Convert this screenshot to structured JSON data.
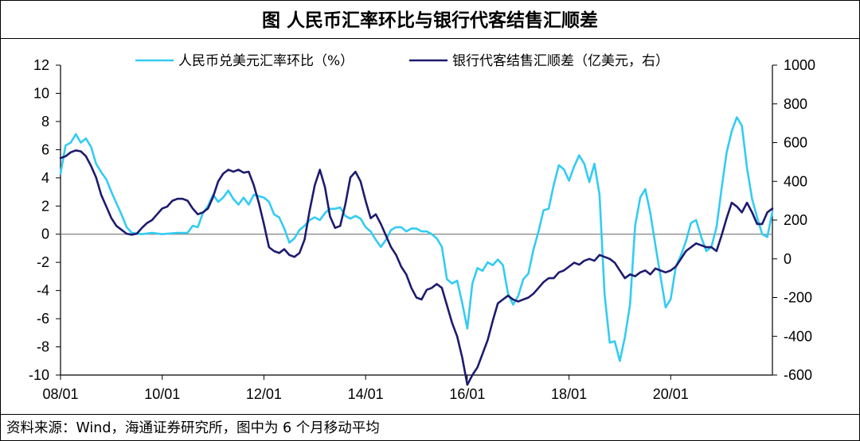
{
  "title": "图  人民币汇率环比与银行代客结售汇顺差",
  "source": "资料来源：Wind，海通证券研究所，图中为 6 个月移动平均",
  "chart_data": {
    "type": "line",
    "title": "图  人民币汇率环比与银行代客结售汇顺差",
    "x_tick_labels": [
      "08/01",
      "10/01",
      "12/01",
      "14/01",
      "16/01",
      "18/01",
      "20/01"
    ],
    "x_tick_years": [
      2008,
      2010,
      2012,
      2014,
      2016,
      2018,
      2020
    ],
    "xlim": [
      2008.0,
      2022.0
    ],
    "y_left": {
      "ylim": [
        -10,
        12
      ],
      "ticks": [
        -10,
        -8,
        -6,
        -4,
        -2,
        0,
        2,
        4,
        6,
        8,
        10,
        12
      ]
    },
    "y_right": {
      "ylim": [
        -600,
        1000
      ],
      "ticks": [
        -600,
        -400,
        -200,
        0,
        200,
        400,
        600,
        800,
        1000
      ]
    },
    "legend_position": "top",
    "series": [
      {
        "name": "人民币兑美元汇率环比（%）",
        "axis": "left",
        "color": "#33ccf2",
        "points": [
          [
            2008.0,
            4.3
          ],
          [
            2008.1,
            6.3
          ],
          [
            2008.2,
            6.5
          ],
          [
            2008.3,
            7.1
          ],
          [
            2008.4,
            6.5
          ],
          [
            2008.5,
            6.8
          ],
          [
            2008.6,
            6.2
          ],
          [
            2008.7,
            5.0
          ],
          [
            2008.8,
            4.4
          ],
          [
            2008.9,
            3.9
          ],
          [
            2009.0,
            3.0
          ],
          [
            2009.1,
            2.2
          ],
          [
            2009.2,
            1.4
          ],
          [
            2009.3,
            0.5
          ],
          [
            2009.4,
            0.1
          ],
          [
            2009.6,
            0.0
          ],
          [
            2009.8,
            0.1
          ],
          [
            2010.0,
            0.0
          ],
          [
            2010.3,
            0.1
          ],
          [
            2010.5,
            0.1
          ],
          [
            2010.6,
            0.6
          ],
          [
            2010.7,
            0.5
          ],
          [
            2010.8,
            1.5
          ],
          [
            2010.9,
            2.0
          ],
          [
            2011.0,
            2.8
          ],
          [
            2011.1,
            2.3
          ],
          [
            2011.2,
            2.6
          ],
          [
            2011.3,
            3.1
          ],
          [
            2011.4,
            2.5
          ],
          [
            2011.5,
            2.1
          ],
          [
            2011.6,
            2.6
          ],
          [
            2011.7,
            2.1
          ],
          [
            2011.8,
            2.8
          ],
          [
            2011.9,
            2.7
          ],
          [
            2012.0,
            2.6
          ],
          [
            2012.1,
            2.3
          ],
          [
            2012.2,
            1.4
          ],
          [
            2012.3,
            1.2
          ],
          [
            2012.4,
            0.4
          ],
          [
            2012.5,
            -0.6
          ],
          [
            2012.6,
            -0.3
          ],
          [
            2012.7,
            0.3
          ],
          [
            2012.8,
            0.6
          ],
          [
            2012.9,
            1.0
          ],
          [
            2013.0,
            1.2
          ],
          [
            2013.1,
            1.0
          ],
          [
            2013.2,
            1.5
          ],
          [
            2013.3,
            1.8
          ],
          [
            2013.4,
            1.8
          ],
          [
            2013.5,
            1.9
          ],
          [
            2013.6,
            1.3
          ],
          [
            2013.7,
            1.1
          ],
          [
            2013.8,
            1.3
          ],
          [
            2013.9,
            1.1
          ],
          [
            2014.0,
            0.5
          ],
          [
            2014.1,
            0.2
          ],
          [
            2014.2,
            -0.4
          ],
          [
            2014.3,
            -0.9
          ],
          [
            2014.4,
            -0.4
          ],
          [
            2014.5,
            0.3
          ],
          [
            2014.6,
            0.5
          ],
          [
            2014.7,
            0.5
          ],
          [
            2014.8,
            0.2
          ],
          [
            2014.9,
            0.4
          ],
          [
            2015.0,
            0.4
          ],
          [
            2015.1,
            0.2
          ],
          [
            2015.2,
            0.2
          ],
          [
            2015.3,
            0.0
          ],
          [
            2015.4,
            -0.3
          ],
          [
            2015.5,
            -0.9
          ],
          [
            2015.6,
            -3.2
          ],
          [
            2015.7,
            -3.5
          ],
          [
            2015.8,
            -3.3
          ],
          [
            2015.9,
            -4.9
          ],
          [
            2016.0,
            -6.7
          ],
          [
            2016.1,
            -3.5
          ],
          [
            2016.2,
            -2.4
          ],
          [
            2016.3,
            -2.6
          ],
          [
            2016.4,
            -2.0
          ],
          [
            2016.5,
            -2.2
          ],
          [
            2016.6,
            -1.8
          ],
          [
            2016.7,
            -2.2
          ],
          [
            2016.8,
            -4.2
          ],
          [
            2016.9,
            -5.0
          ],
          [
            2017.0,
            -4.4
          ],
          [
            2017.1,
            -3.2
          ],
          [
            2017.2,
            -2.8
          ],
          [
            2017.3,
            -1.1
          ],
          [
            2017.4,
            0.2
          ],
          [
            2017.5,
            1.7
          ],
          [
            2017.6,
            1.8
          ],
          [
            2017.7,
            3.5
          ],
          [
            2017.8,
            4.9
          ],
          [
            2017.9,
            4.6
          ],
          [
            2018.0,
            3.8
          ],
          [
            2018.1,
            4.8
          ],
          [
            2018.2,
            5.6
          ],
          [
            2018.3,
            5.0
          ],
          [
            2018.4,
            3.7
          ],
          [
            2018.5,
            5.0
          ],
          [
            2018.6,
            2.8
          ],
          [
            2018.7,
            -4.3
          ],
          [
            2018.8,
            -7.7
          ],
          [
            2018.9,
            -7.6
          ],
          [
            2019.0,
            -9.0
          ],
          [
            2019.1,
            -7.3
          ],
          [
            2019.2,
            -5.0
          ],
          [
            2019.3,
            0.6
          ],
          [
            2019.4,
            2.6
          ],
          [
            2019.5,
            3.2
          ],
          [
            2019.6,
            1.5
          ],
          [
            2019.7,
            -0.8
          ],
          [
            2019.8,
            -3.0
          ],
          [
            2019.9,
            -5.2
          ],
          [
            2020.0,
            -4.6
          ],
          [
            2020.1,
            -2.3
          ],
          [
            2020.2,
            -1.5
          ],
          [
            2020.3,
            -0.5
          ],
          [
            2020.4,
            0.8
          ],
          [
            2020.5,
            1.0
          ],
          [
            2020.6,
            -0.2
          ],
          [
            2020.7,
            -1.2
          ],
          [
            2020.8,
            -0.9
          ],
          [
            2020.9,
            0.5
          ],
          [
            2021.0,
            3.2
          ],
          [
            2021.1,
            5.8
          ],
          [
            2021.2,
            7.3
          ],
          [
            2021.3,
            8.3
          ],
          [
            2021.4,
            7.7
          ],
          [
            2021.5,
            4.7
          ],
          [
            2021.6,
            2.5
          ],
          [
            2021.7,
            1.2
          ],
          [
            2021.8,
            0.0
          ],
          [
            2021.9,
            -0.2
          ],
          [
            2022.0,
            1.6
          ]
        ]
      },
      {
        "name": "银行代客结售汇顺差（亿美元，右）",
        "axis": "right",
        "color": "#1e1b6e",
        "points": [
          [
            2008.0,
            520
          ],
          [
            2008.1,
            530
          ],
          [
            2008.2,
            550
          ],
          [
            2008.3,
            560
          ],
          [
            2008.4,
            555
          ],
          [
            2008.5,
            530
          ],
          [
            2008.6,
            480
          ],
          [
            2008.7,
            420
          ],
          [
            2008.8,
            330
          ],
          [
            2008.9,
            270
          ],
          [
            2009.0,
            210
          ],
          [
            2009.1,
            170
          ],
          [
            2009.2,
            150
          ],
          [
            2009.3,
            130
          ],
          [
            2009.4,
            125
          ],
          [
            2009.5,
            130
          ],
          [
            2009.6,
            160
          ],
          [
            2009.7,
            185
          ],
          [
            2009.8,
            200
          ],
          [
            2009.9,
            230
          ],
          [
            2010.0,
            260
          ],
          [
            2010.1,
            270
          ],
          [
            2010.2,
            300
          ],
          [
            2010.3,
            310
          ],
          [
            2010.4,
            310
          ],
          [
            2010.5,
            300
          ],
          [
            2010.6,
            260
          ],
          [
            2010.7,
            230
          ],
          [
            2010.8,
            240
          ],
          [
            2010.9,
            260
          ],
          [
            2011.0,
            320
          ],
          [
            2011.1,
            400
          ],
          [
            2011.2,
            440
          ],
          [
            2011.3,
            460
          ],
          [
            2011.4,
            450
          ],
          [
            2011.5,
            460
          ],
          [
            2011.6,
            445
          ],
          [
            2011.7,
            450
          ],
          [
            2011.8,
            380
          ],
          [
            2011.9,
            290
          ],
          [
            2012.0,
            180
          ],
          [
            2012.1,
            60
          ],
          [
            2012.2,
            40
          ],
          [
            2012.3,
            30
          ],
          [
            2012.4,
            50
          ],
          [
            2012.5,
            20
          ],
          [
            2012.6,
            10
          ],
          [
            2012.7,
            30
          ],
          [
            2012.8,
            100
          ],
          [
            2012.9,
            250
          ],
          [
            2013.0,
            380
          ],
          [
            2013.1,
            460
          ],
          [
            2013.2,
            370
          ],
          [
            2013.3,
            220
          ],
          [
            2013.4,
            160
          ],
          [
            2013.5,
            170
          ],
          [
            2013.6,
            280
          ],
          [
            2013.7,
            420
          ],
          [
            2013.8,
            450
          ],
          [
            2013.9,
            400
          ],
          [
            2014.0,
            300
          ],
          [
            2014.1,
            210
          ],
          [
            2014.2,
            230
          ],
          [
            2014.3,
            180
          ],
          [
            2014.4,
            120
          ],
          [
            2014.5,
            60
          ],
          [
            2014.6,
            20
          ],
          [
            2014.7,
            -40
          ],
          [
            2014.8,
            -80
          ],
          [
            2014.9,
            -150
          ],
          [
            2015.0,
            -200
          ],
          [
            2015.1,
            -210
          ],
          [
            2015.2,
            -160
          ],
          [
            2015.3,
            -150
          ],
          [
            2015.4,
            -130
          ],
          [
            2015.5,
            -150
          ],
          [
            2015.6,
            -240
          ],
          [
            2015.7,
            -330
          ],
          [
            2015.8,
            -400
          ],
          [
            2015.9,
            -510
          ],
          [
            2016.0,
            -650
          ],
          [
            2016.1,
            -600
          ],
          [
            2016.2,
            -560
          ],
          [
            2016.3,
            -490
          ],
          [
            2016.4,
            -420
          ],
          [
            2016.5,
            -320
          ],
          [
            2016.6,
            -230
          ],
          [
            2016.7,
            -210
          ],
          [
            2016.8,
            -190
          ],
          [
            2016.9,
            -210
          ],
          [
            2017.0,
            -220
          ],
          [
            2017.1,
            -210
          ],
          [
            2017.2,
            -200
          ],
          [
            2017.3,
            -180
          ],
          [
            2017.4,
            -150
          ],
          [
            2017.5,
            -120
          ],
          [
            2017.6,
            -100
          ],
          [
            2017.7,
            -100
          ],
          [
            2017.8,
            -70
          ],
          [
            2017.9,
            -60
          ],
          [
            2018.0,
            -40
          ],
          [
            2018.1,
            -20
          ],
          [
            2018.2,
            -30
          ],
          [
            2018.3,
            -10
          ],
          [
            2018.4,
            0
          ],
          [
            2018.5,
            -10
          ],
          [
            2018.6,
            20
          ],
          [
            2018.7,
            10
          ],
          [
            2018.8,
            0
          ],
          [
            2018.9,
            -20
          ],
          [
            2019.0,
            -60
          ],
          [
            2019.1,
            -100
          ],
          [
            2019.2,
            -80
          ],
          [
            2019.3,
            -90
          ],
          [
            2019.4,
            -70
          ],
          [
            2019.5,
            -60
          ],
          [
            2019.6,
            -80
          ],
          [
            2019.7,
            -50
          ],
          [
            2019.8,
            -60
          ],
          [
            2019.9,
            -70
          ],
          [
            2020.0,
            -60
          ],
          [
            2020.1,
            -40
          ],
          [
            2020.2,
            0
          ],
          [
            2020.3,
            40
          ],
          [
            2020.4,
            60
          ],
          [
            2020.5,
            80
          ],
          [
            2020.6,
            70
          ],
          [
            2020.7,
            60
          ],
          [
            2020.8,
            60
          ],
          [
            2020.9,
            40
          ],
          [
            2021.0,
            120
          ],
          [
            2021.1,
            210
          ],
          [
            2021.2,
            290
          ],
          [
            2021.3,
            270
          ],
          [
            2021.4,
            240
          ],
          [
            2021.5,
            290
          ],
          [
            2021.6,
            240
          ],
          [
            2021.7,
            180
          ],
          [
            2021.8,
            180
          ],
          [
            2021.9,
            240
          ],
          [
            2022.0,
            260
          ]
        ]
      }
    ]
  }
}
